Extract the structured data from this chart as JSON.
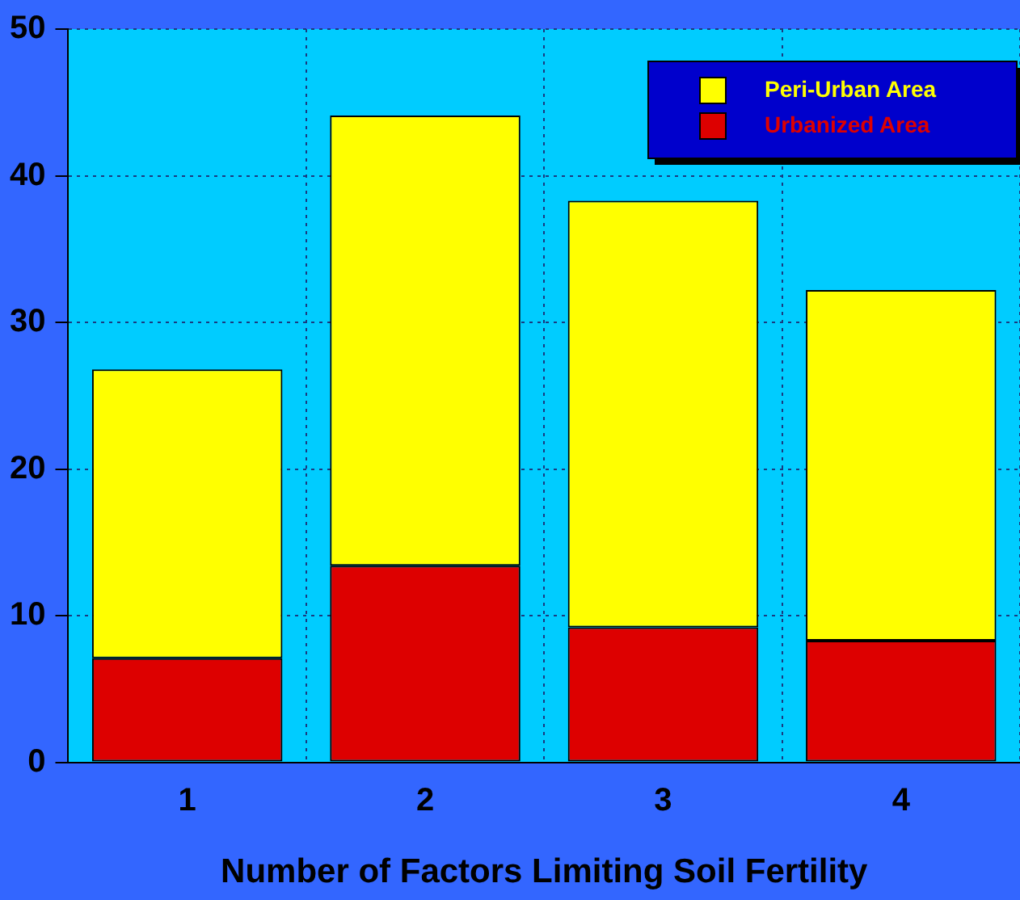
{
  "chart_data": {
    "type": "bar",
    "xlabel": "Number of Factors Limiting Soil Fertility",
    "categories": [
      "1",
      "2",
      "3",
      "4"
    ],
    "series": [
      {
        "name": "Urbanized Area",
        "color": "#dd0000",
        "values": [
          7.1,
          13.4,
          9.2,
          8.3
        ]
      },
      {
        "name": "Peri-Urban Area",
        "color": "#ffff00",
        "values": [
          19.7,
          30.7,
          29.1,
          23.9
        ]
      }
    ],
    "stacked": true,
    "ylim": [
      0,
      50
    ],
    "yticks": [
      0,
      10,
      20,
      30,
      40,
      50
    ],
    "grid": true,
    "legend": "top right"
  }
}
